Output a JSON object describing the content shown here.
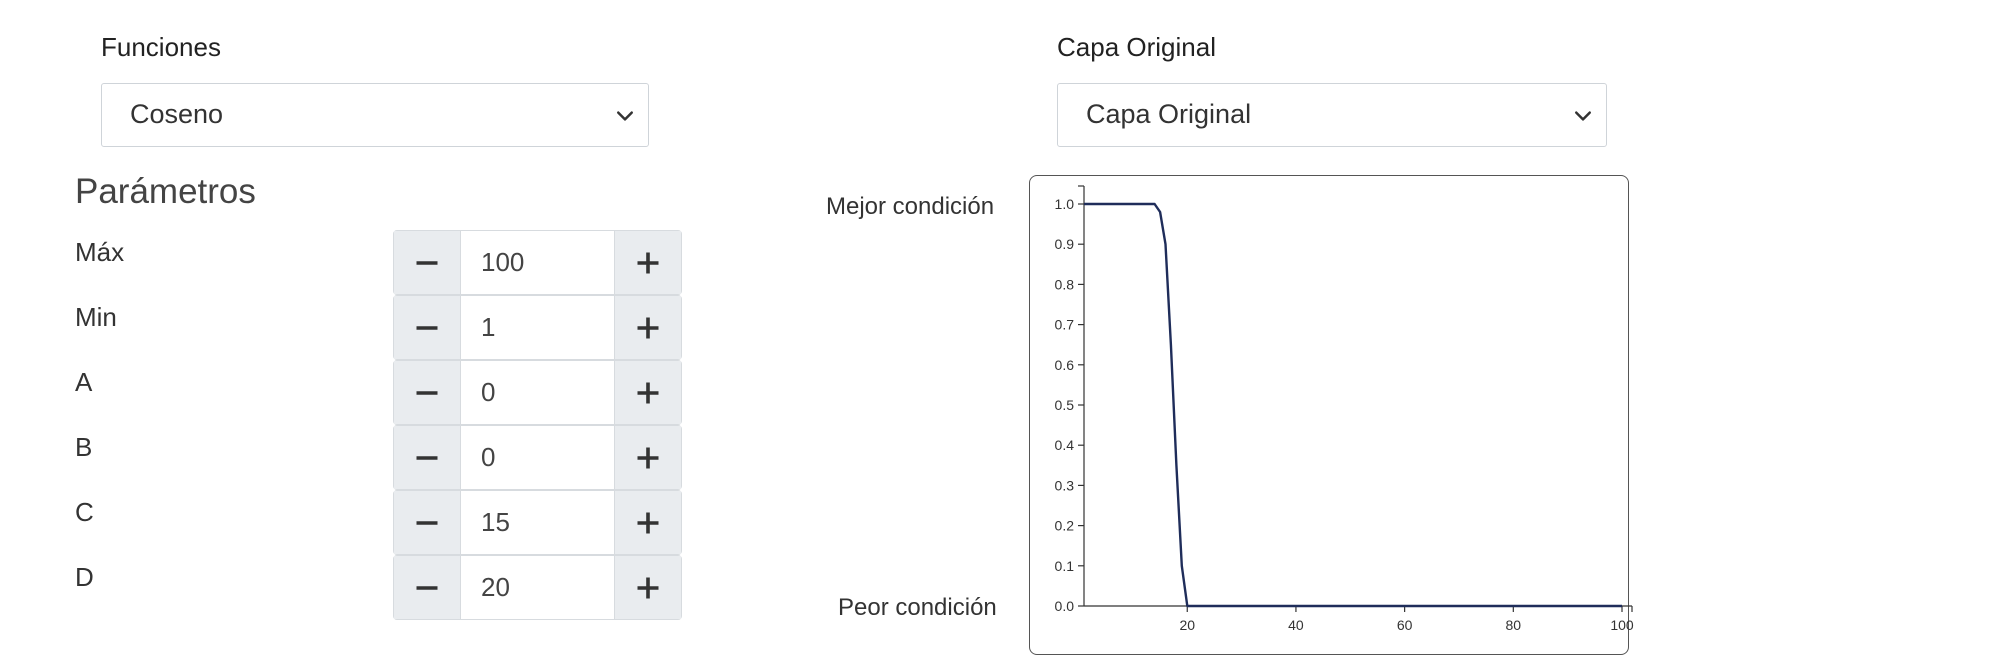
{
  "functions": {
    "label": "Funciones",
    "selected": "Coseno"
  },
  "layer": {
    "label": "Capa Original",
    "selected": "Capa Original"
  },
  "params": {
    "title": "Parámetros",
    "items": [
      {
        "label": "Máx",
        "value": "100"
      },
      {
        "label": "Min",
        "value": "1"
      },
      {
        "label": "A",
        "value": "0"
      },
      {
        "label": "B",
        "value": "0"
      },
      {
        "label": "C",
        "value": "15"
      },
      {
        "label": "D",
        "value": "20"
      }
    ]
  },
  "chart_labels": {
    "best": "Mejor condición",
    "worst": "Peor condición"
  },
  "chart_data": {
    "type": "line",
    "title": "",
    "xlabel": "",
    "ylabel": "",
    "xlim": [
      1,
      100
    ],
    "ylim": [
      0,
      1
    ],
    "x_ticks": [
      "20",
      "40",
      "60",
      "80",
      "100"
    ],
    "y_ticks": [
      "0.0",
      "0.1",
      "0.2",
      "0.3",
      "0.4",
      "0.5",
      "0.6",
      "0.7",
      "0.8",
      "0.9",
      "1.0"
    ],
    "grid": false,
    "legend": "none",
    "series": [
      {
        "color": "#1f2d5a",
        "x": [
          1,
          14,
          15,
          16,
          17,
          18,
          19,
          20,
          25,
          50,
          75,
          100
        ],
        "y": [
          1.0,
          1.0,
          0.98,
          0.9,
          0.65,
          0.35,
          0.1,
          0.0,
          0.0,
          0.0,
          0.0,
          0.0
        ]
      }
    ]
  }
}
